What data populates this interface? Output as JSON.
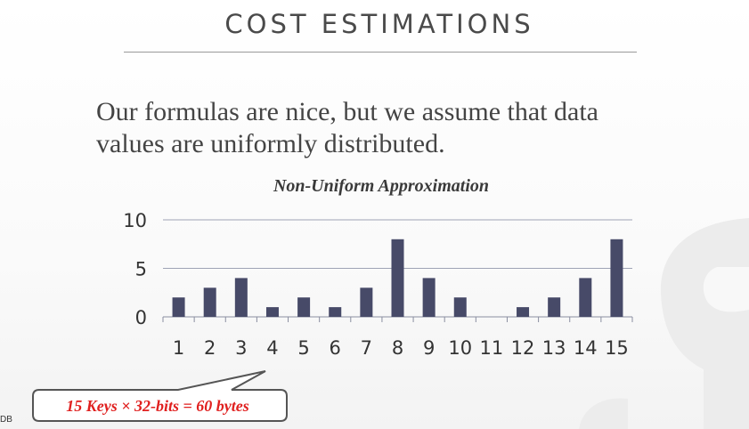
{
  "slide": {
    "title": "COST ESTIMATIONS",
    "body_lines": [
      "Our formulas are nice, but we assume that data",
      "values are uniformly distributed."
    ],
    "callout_text": "15 Keys × 32-bits = 60 bytes",
    "footer_mark": "DB"
  },
  "colors": {
    "bar": "#474a68",
    "callout_text": "#e0201f",
    "title": "#4a4a4a",
    "grid": "#9fa3b5"
  },
  "chart_data": {
    "type": "bar",
    "title": "Non-Uniform Approximation",
    "categories": [
      "1",
      "2",
      "3",
      "4",
      "5",
      "6",
      "7",
      "8",
      "9",
      "10",
      "11",
      "12",
      "13",
      "14",
      "15"
    ],
    "values": [
      2,
      3,
      4,
      1,
      2,
      1,
      3,
      8,
      4,
      2,
      0,
      1,
      2,
      4,
      8
    ],
    "xlabel": "",
    "ylabel": "",
    "ylim": [
      0,
      10
    ],
    "yticks": [
      0,
      5,
      10
    ],
    "grid": true,
    "legend": "none"
  }
}
